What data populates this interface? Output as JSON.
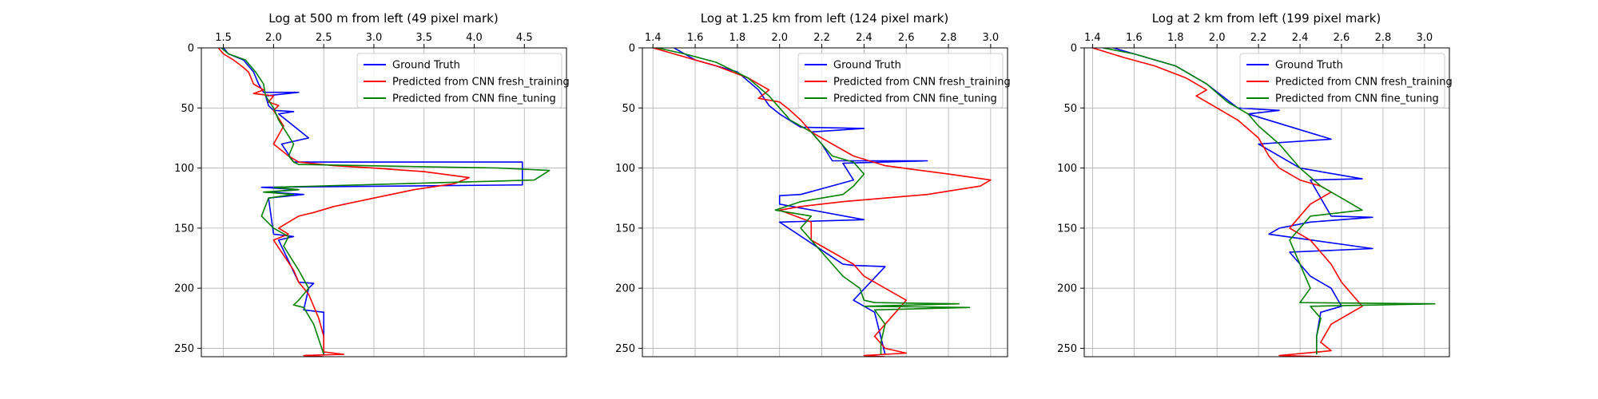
{
  "figure": {
    "legend_labels": [
      "Ground Truth",
      "Predicted from CNN fresh_training",
      "Predicted from CNN fine_tuning"
    ],
    "legend_colors": [
      "#0000ff",
      "#ff0000",
      "#008000"
    ]
  },
  "chart_data": [
    {
      "type": "line",
      "title": "Log at 500 m from left (49 pixel mark)",
      "xlabel": "",
      "ylabel": "",
      "xlim": [
        1.28,
        4.92
      ],
      "ylim": [
        257,
        0
      ],
      "xticks": [
        1.5,
        2.0,
        2.5,
        3.0,
        3.5,
        4.0,
        4.5
      ],
      "xtick_labels": [
        "1.5",
        "2.0",
        "2.5",
        "3.0",
        "3.5",
        "4.0",
        "4.5"
      ],
      "yticks": [
        0,
        50,
        100,
        150,
        200,
        250
      ],
      "ytick_labels": [
        "0",
        "50",
        "100",
        "150",
        "200",
        "250"
      ],
      "x_axis_position": "top",
      "grid": true,
      "legend_position": "upper right",
      "series": [
        {
          "name": "Ground Truth",
          "color": "#0000ff",
          "x": [
            1.5,
            1.55,
            1.7,
            1.8,
            1.85,
            1.9,
            2.25,
            1.92,
            1.95,
            2.0,
            2.2,
            2.05,
            2.35,
            2.08,
            2.2,
            4.48,
            4.48,
            1.88,
            2.25,
            1.95,
            2.3,
            1.95,
            2.0,
            2.2,
            2.05,
            2.25,
            2.4,
            2.35,
            2.3,
            2.5,
            2.5
          ],
          "y": [
            0,
            5,
            10,
            20,
            30,
            37,
            37,
            40,
            48,
            52,
            53,
            55,
            75,
            80,
            95,
            95,
            114,
            116,
            118,
            120,
            122,
            125,
            155,
            157,
            160,
            195,
            196,
            200,
            218,
            220,
            255
          ]
        },
        {
          "name": "Predicted from CNN fresh_training",
          "color": "#ff0000",
          "x": [
            1.45,
            1.5,
            1.6,
            1.68,
            1.75,
            1.8,
            1.9,
            1.8,
            2.0,
            1.95,
            2.05,
            2.0,
            2.1,
            2.0,
            2.15,
            2.25,
            2.6,
            3.0,
            3.5,
            3.95,
            3.8,
            3.4,
            3.0,
            2.6,
            2.4,
            2.25,
            2.15,
            2.05,
            2.15,
            2.0,
            2.2,
            2.25,
            2.35,
            2.4,
            2.45,
            2.5,
            2.5,
            2.7,
            2.3,
            2.5
          ],
          "y": [
            0,
            5,
            10,
            15,
            20,
            30,
            35,
            38,
            40,
            45,
            48,
            52,
            65,
            80,
            90,
            95,
            98,
            100,
            103,
            108,
            113,
            118,
            125,
            132,
            137,
            140,
            145,
            150,
            155,
            160,
            185,
            195,
            205,
            215,
            225,
            240,
            253,
            255,
            256,
            257
          ]
        },
        {
          "name": "Predicted from CNN fine_tuning",
          "color": "#008000",
          "x": [
            1.48,
            1.55,
            1.72,
            1.82,
            1.9,
            1.92,
            2.0,
            2.05,
            2.2,
            2.15,
            2.2,
            2.25,
            4.25,
            4.75,
            4.6,
            2.0,
            2.25,
            1.9,
            2.2,
            1.95,
            1.88,
            2.0,
            2.15,
            2.1,
            2.25,
            2.35,
            2.25,
            2.2,
            2.3,
            2.4,
            2.5
          ],
          "y": [
            0,
            5,
            10,
            20,
            30,
            40,
            50,
            60,
            80,
            90,
            95,
            97,
            100,
            102,
            110,
            116,
            118,
            120,
            122,
            125,
            140,
            150,
            157,
            165,
            185,
            200,
            210,
            214,
            216,
            230,
            255
          ]
        }
      ]
    },
    {
      "type": "line",
      "title": "Log at 1.25 km from left (124 pixel mark)",
      "xlabel": "",
      "ylabel": "",
      "xlim": [
        1.35,
        3.08
      ],
      "ylim": [
        257,
        0
      ],
      "xticks": [
        1.4,
        1.6,
        1.8,
        2.0,
        2.2,
        2.4,
        2.6,
        2.8,
        3.0
      ],
      "xtick_labels": [
        "1.4",
        "1.6",
        "1.8",
        "2.0",
        "2.2",
        "2.4",
        "2.6",
        "2.8",
        "3.0"
      ],
      "yticks": [
        0,
        50,
        100,
        150,
        200,
        250
      ],
      "ytick_labels": [
        "0",
        "50",
        "100",
        "150",
        "200",
        "250"
      ],
      "x_axis_position": "top",
      "grid": true,
      "legend_position": "upper right",
      "series": [
        {
          "name": "Ground Truth",
          "color": "#0000ff",
          "x": [
            1.5,
            1.6,
            1.8,
            1.9,
            1.95,
            2.0,
            2.1,
            2.4,
            2.15,
            2.2,
            2.25,
            2.7,
            2.3,
            2.35,
            2.1,
            2.0,
            2.0,
            2.4,
            2.0,
            2.3,
            2.35,
            2.5,
            2.35,
            2.45,
            2.5
          ],
          "y": [
            0,
            10,
            20,
            35,
            48,
            55,
            66,
            67,
            70,
            80,
            94,
            94,
            96,
            110,
            122,
            123,
            130,
            143,
            145,
            180,
            181,
            182,
            210,
            220,
            255
          ]
        },
        {
          "name": "Predicted from CNN fresh_training",
          "color": "#ff0000",
          "x": [
            1.4,
            1.5,
            1.6,
            1.7,
            1.85,
            1.95,
            1.9,
            2.0,
            2.05,
            2.1,
            2.15,
            2.25,
            2.35,
            2.5,
            2.8,
            3.0,
            2.95,
            2.7,
            2.3,
            2.1,
            2.0,
            2.15,
            2.15,
            2.25,
            2.35,
            2.4,
            2.5,
            2.6,
            2.55,
            2.5,
            2.45,
            2.5,
            2.6,
            2.4,
            2.5
          ],
          "y": [
            0,
            5,
            10,
            15,
            25,
            35,
            42,
            45,
            52,
            60,
            70,
            80,
            90,
            98,
            105,
            110,
            115,
            122,
            128,
            132,
            135,
            145,
            160,
            170,
            180,
            190,
            200,
            210,
            220,
            230,
            240,
            250,
            254,
            256,
            257
          ]
        },
        {
          "name": "Predicted from CNN fine_tuning",
          "color": "#008000",
          "x": [
            1.42,
            1.55,
            1.7,
            1.85,
            1.95,
            2.0,
            2.05,
            2.15,
            2.2,
            2.25,
            2.35,
            2.4,
            2.35,
            2.3,
            2.1,
            1.98,
            2.15,
            2.1,
            2.2,
            2.3,
            2.38,
            2.4,
            2.45,
            2.85,
            2.4,
            2.9,
            2.45,
            2.5,
            2.48,
            2.48
          ],
          "y": [
            0,
            5,
            12,
            25,
            40,
            50,
            60,
            70,
            80,
            90,
            95,
            105,
            115,
            122,
            128,
            135,
            140,
            150,
            170,
            190,
            200,
            210,
            212,
            213,
            215,
            216,
            218,
            230,
            245,
            255
          ]
        }
      ]
    },
    {
      "type": "line",
      "title": "Log at 2 km from left (199 pixel mark)",
      "xlabel": "",
      "ylabel": "",
      "xlim": [
        1.36,
        3.12
      ],
      "ylim": [
        257,
        0
      ],
      "xticks": [
        1.4,
        1.6,
        1.8,
        2.0,
        2.2,
        2.4,
        2.6,
        2.8,
        3.0
      ],
      "xtick_labels": [
        "1.4",
        "1.6",
        "1.8",
        "2.0",
        "2.2",
        "2.4",
        "2.6",
        "2.8",
        "3.0"
      ],
      "yticks": [
        0,
        50,
        100,
        150,
        200,
        250
      ],
      "ytick_labels": [
        "0",
        "50",
        "100",
        "150",
        "200",
        "250"
      ],
      "x_axis_position": "top",
      "grid": true,
      "legend_position": "upper right",
      "series": [
        {
          "name": "Ground Truth",
          "color": "#0000ff",
          "x": [
            1.5,
            1.6,
            1.8,
            1.95,
            2.1,
            2.3,
            2.15,
            2.55,
            2.2,
            2.4,
            2.7,
            2.45,
            2.55,
            2.75,
            2.45,
            2.3,
            2.25,
            2.75,
            2.35,
            2.45,
            2.55,
            2.6,
            2.5,
            2.48,
            2.48
          ],
          "y": [
            0,
            5,
            15,
            30,
            50,
            52,
            55,
            76,
            80,
            100,
            109,
            110,
            140,
            141,
            145,
            150,
            155,
            167,
            170,
            190,
            200,
            215,
            220,
            240,
            255
          ]
        },
        {
          "name": "Predicted from CNN fresh_training",
          "color": "#ff0000",
          "x": [
            1.4,
            1.55,
            1.7,
            1.85,
            1.95,
            1.9,
            2.0,
            2.1,
            2.2,
            2.25,
            2.3,
            2.4,
            2.5,
            2.55,
            2.45,
            2.4,
            2.35,
            2.45,
            2.55,
            2.6,
            2.65,
            2.7,
            2.55,
            2.5,
            2.55,
            2.3,
            2.5
          ],
          "y": [
            0,
            8,
            15,
            25,
            35,
            40,
            50,
            60,
            75,
            90,
            100,
            110,
            115,
            120,
            130,
            140,
            150,
            160,
            180,
            195,
            205,
            215,
            230,
            245,
            252,
            256,
            257
          ]
        },
        {
          "name": "Predicted from CNN fine_tuning",
          "color": "#008000",
          "x": [
            1.45,
            1.6,
            1.8,
            1.95,
            2.05,
            2.15,
            2.2,
            2.3,
            2.4,
            2.5,
            2.6,
            2.7,
            2.45,
            2.4,
            2.35,
            2.4,
            2.45,
            2.4,
            3.05,
            2.45,
            2.5,
            2.48,
            2.48
          ],
          "y": [
            0,
            5,
            15,
            30,
            45,
            55,
            65,
            80,
            100,
            115,
            125,
            135,
            140,
            150,
            160,
            180,
            200,
            212,
            213,
            215,
            225,
            240,
            255
          ]
        }
      ]
    }
  ]
}
